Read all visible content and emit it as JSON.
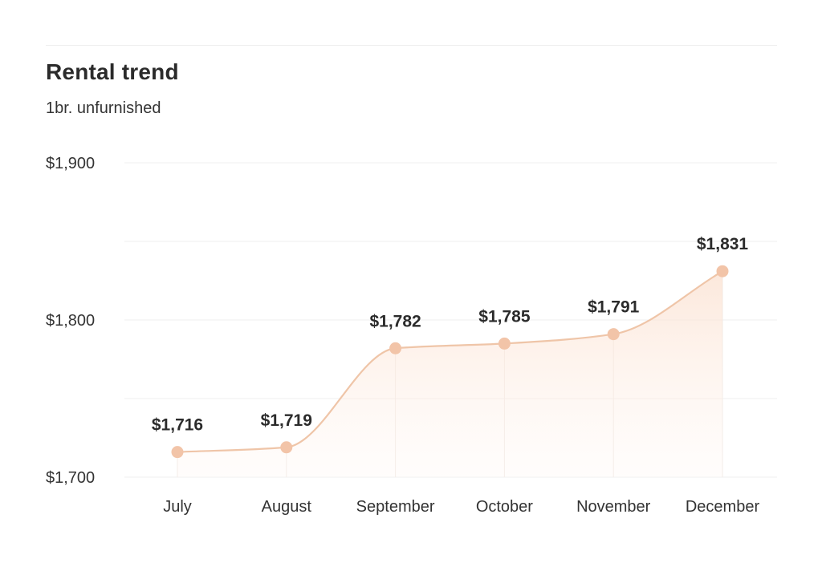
{
  "header": {
    "title": "Rental trend",
    "subtitle": "1br. unfurnished"
  },
  "colors": {
    "line": "#efc5a8",
    "marker": "#f2c4a8",
    "fill_top": "#fbe4d6",
    "grid": "#efefef",
    "text": "#2b2b2b"
  },
  "chart_data": {
    "type": "area",
    "title": "Rental trend",
    "subtitle": "1br. unfurnished",
    "categories": [
      "July",
      "August",
      "September",
      "October",
      "November",
      "December"
    ],
    "series": [
      {
        "values": [
          1716,
          1719,
          1782,
          1785,
          1791,
          1831
        ],
        "data_labels": [
          "$1,716",
          "$1,719",
          "$1,782",
          "$1,785",
          "$1,791",
          "$1,831"
        ]
      }
    ],
    "ylim": [
      1700,
      1900
    ],
    "y_ticks": [
      1700,
      1800,
      1900
    ],
    "y_tick_labels": [
      "$1,700",
      "$1,800",
      "$1,900"
    ],
    "y_minor_ticks": [
      1750,
      1850
    ],
    "grid": true,
    "xlabel": "",
    "ylabel": "",
    "legend": "none"
  }
}
